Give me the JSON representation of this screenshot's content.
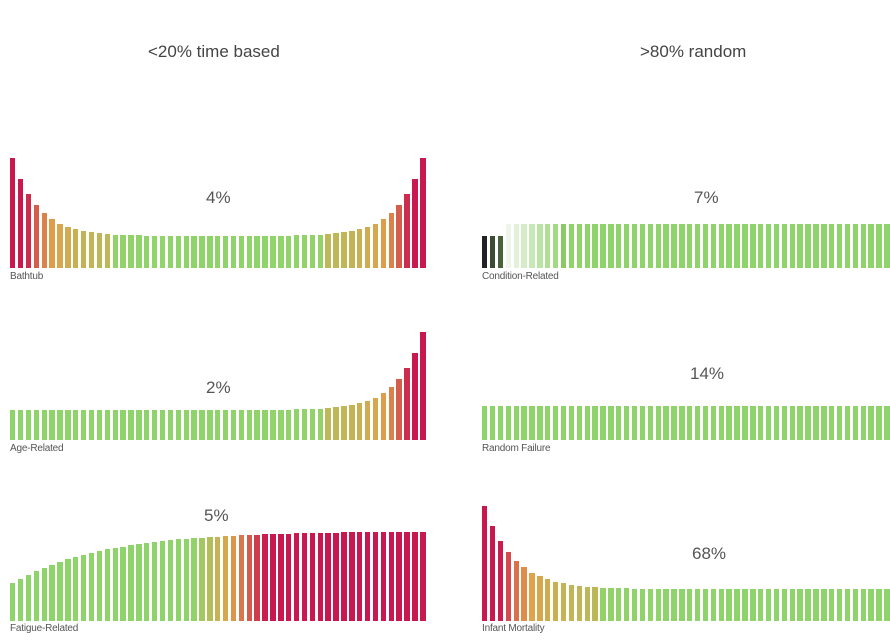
{
  "headings": {
    "left": "<20% time based",
    "right": ">80% random"
  },
  "panels": [
    {
      "id": "bathtub",
      "name": "Bathtub",
      "percent": "4%",
      "shape": "bathtub"
    },
    {
      "id": "condition",
      "name": "Condition-Related",
      "percent": "7%",
      "shape": "condition"
    },
    {
      "id": "age",
      "name": "Age-Related",
      "percent": "2%",
      "shape": "age"
    },
    {
      "id": "random",
      "name": "Random Failure",
      "percent": "14%",
      "shape": "random"
    },
    {
      "id": "fatigue",
      "name": "Fatigue-Related",
      "percent": "5%",
      "shape": "fatigue"
    },
    {
      "id": "infant",
      "name": "Infant Mortality",
      "percent": "68%",
      "shape": "infant"
    }
  ],
  "colors": {
    "green": "#8fd46a",
    "orange": "#e0a24a",
    "red": "#c9174f",
    "gray": "#b8bcb6",
    "dark": "#222222"
  }
}
